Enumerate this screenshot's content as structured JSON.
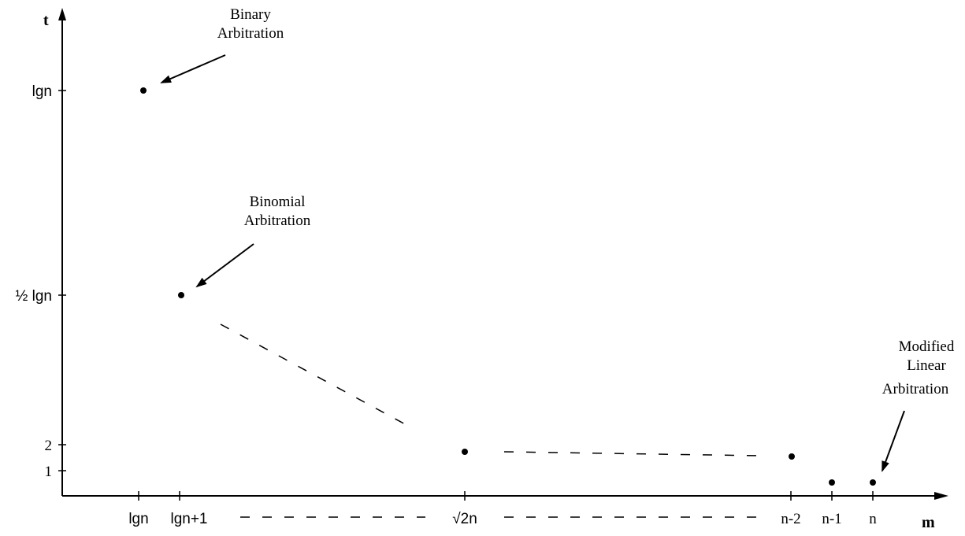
{
  "chart_data": {
    "type": "scatter",
    "title": "",
    "xlabel": "m",
    "ylabel": "t",
    "grid": false,
    "x_ticks": [
      "lgn",
      "lgn+1",
      "√2n",
      "n-2",
      "n-1",
      "n"
    ],
    "y_ticks": [
      "1",
      "2",
      "½ lgn",
      "lgn"
    ],
    "points": [
      {
        "x": "lgn",
        "y": "lgn"
      },
      {
        "x": "lgn+1",
        "y": "½ lgn"
      },
      {
        "x": "√2n",
        "y": "2"
      },
      {
        "x": "n-2",
        "y": "2"
      },
      {
        "x": "n-1",
        "y": "1"
      },
      {
        "x": "n",
        "y": "1"
      }
    ],
    "annotations": [
      {
        "lines": [
          "Binary",
          "Arbitration"
        ],
        "target": "lgn"
      },
      {
        "lines": [
          "Binomial",
          "Arbitration"
        ],
        "target": "lgn+1"
      },
      {
        "lines": [
          "Modified",
          "Linear",
          "Arbitration"
        ],
        "target": "n"
      }
    ]
  }
}
